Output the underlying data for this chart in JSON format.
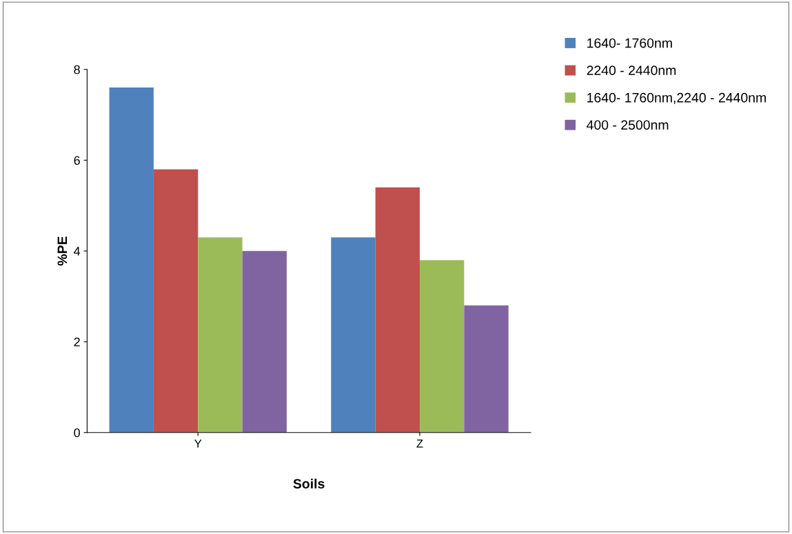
{
  "chart_data": {
    "type": "bar",
    "xlabel": "Soils",
    "ylabel": "%PE",
    "categories": [
      "Y",
      "Z"
    ],
    "series": [
      {
        "name": "1640- 1760nm",
        "color": "#4f81bd",
        "values": [
          7.6,
          4.3
        ]
      },
      {
        "name": "2240 - 2440nm",
        "color": "#c0504d",
        "values": [
          5.8,
          5.4
        ]
      },
      {
        "name": "1640- 1760nm,2240 - 2440nm",
        "color": "#9bbb59",
        "values": [
          4.3,
          3.8
        ]
      },
      {
        "name": "400 - 2500nm",
        "color": "#8064a2",
        "values": [
          4.0,
          2.8
        ]
      }
    ],
    "ylim": [
      0,
      8
    ],
    "yticks": [
      0,
      2,
      4,
      6,
      8
    ],
    "grid": false,
    "legend": "top right"
  }
}
